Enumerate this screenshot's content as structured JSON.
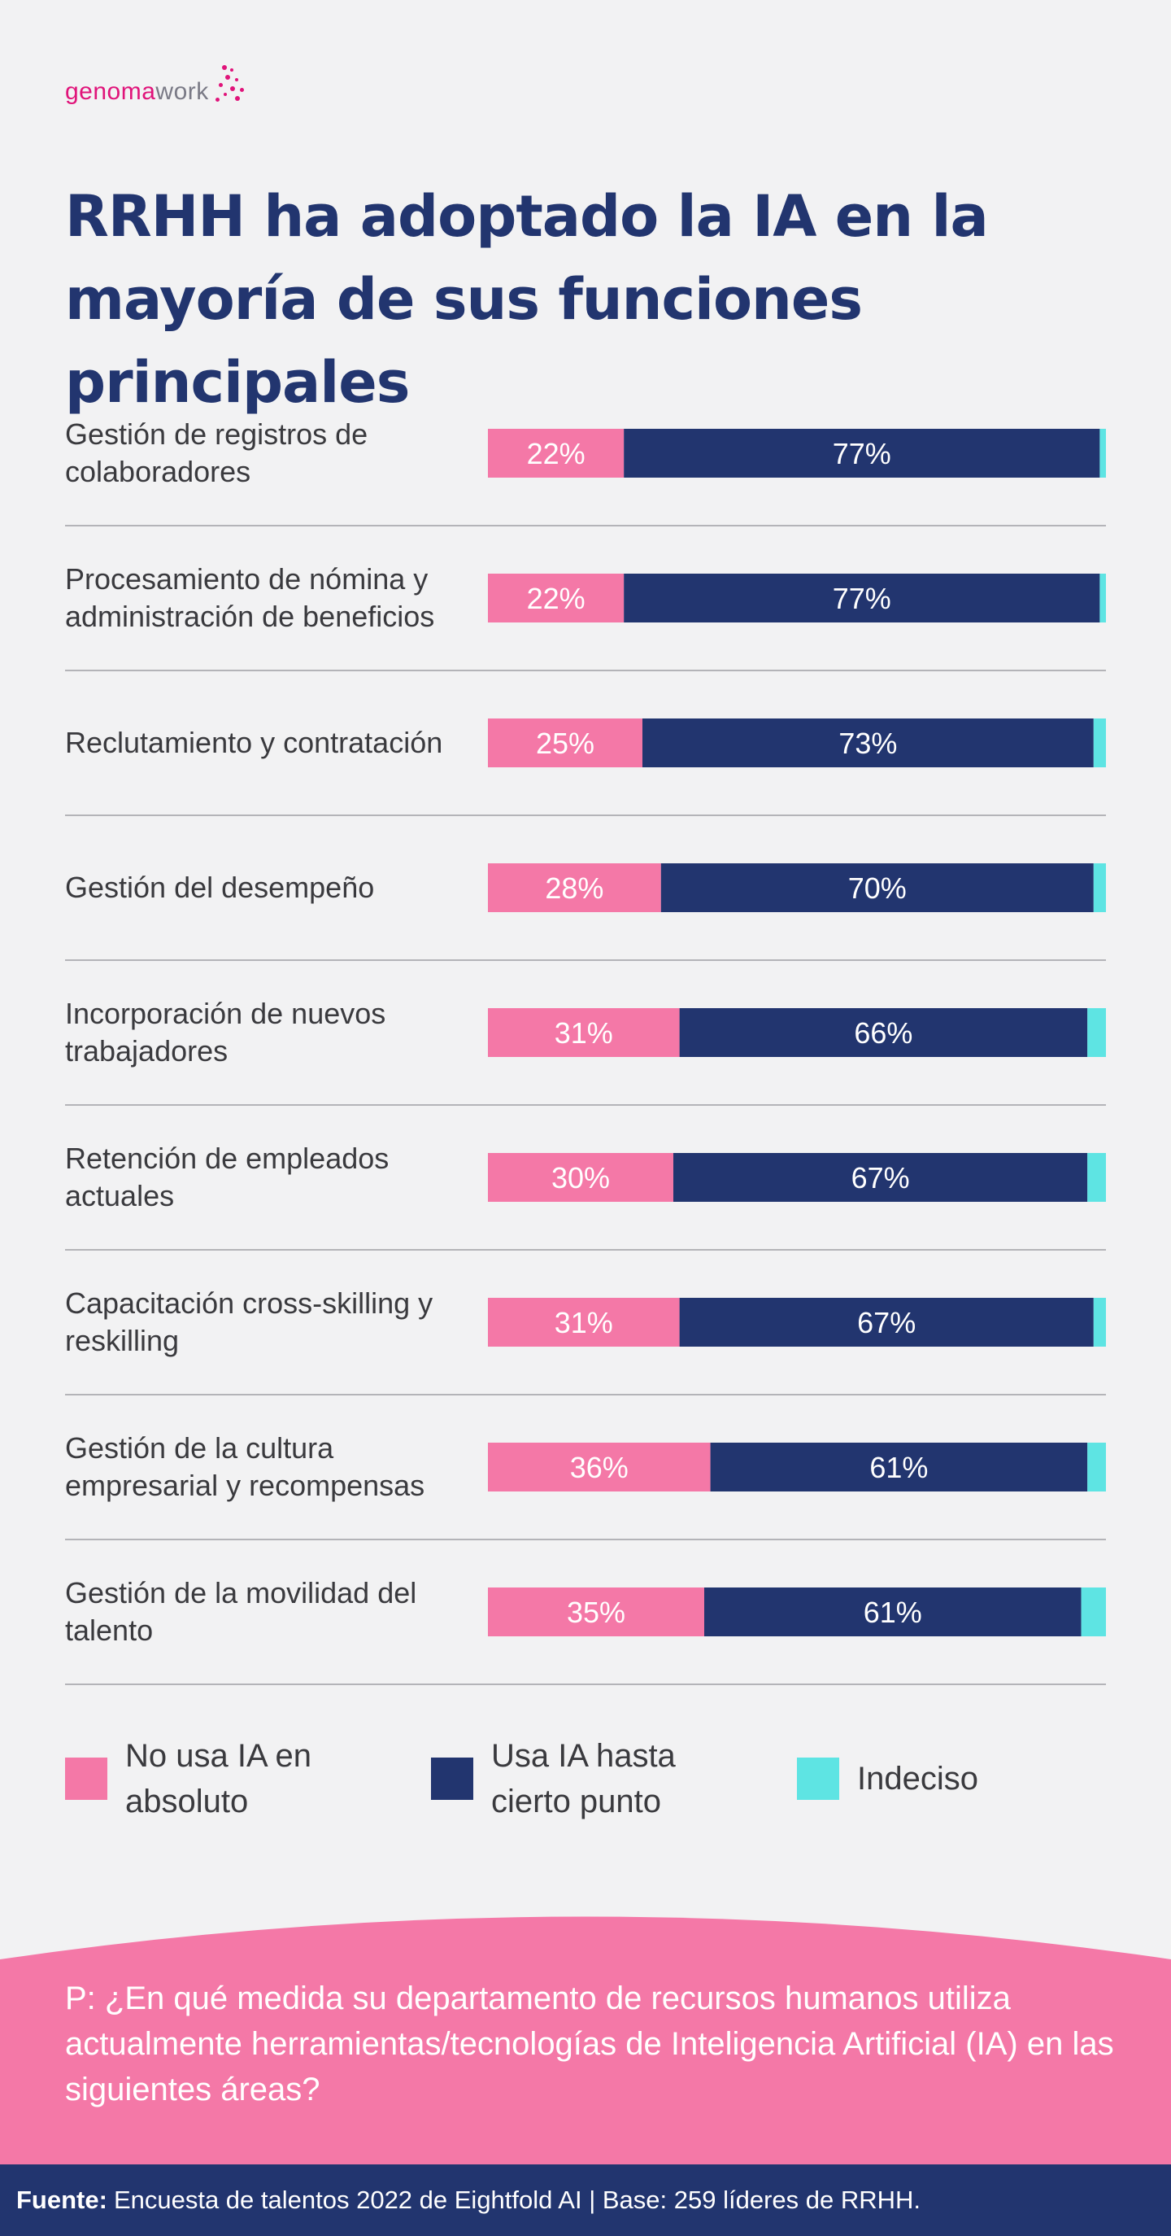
{
  "brand": {
    "logo_main": "genoma",
    "logo_accent": "work"
  },
  "title": "RRHH ha adoptado la IA en la mayoría de sus funciones principales",
  "colors": {
    "pink": "#f478a7",
    "navy": "#22356f",
    "cyan": "#5ee4e3",
    "text": "#3a3a3e"
  },
  "chart_data": {
    "type": "bar",
    "orientation": "horizontal",
    "stacked": true,
    "normalized": true,
    "title": "RRHH ha adoptado la IA en la mayoría de sus funciones principales",
    "categories": [
      "Gestión de registros de colaboradores",
      "Procesamiento de nómina y administración de beneficios",
      "Reclutamiento y contratación",
      "Gestión del desempeño",
      "Incorporación de nuevos trabajadores",
      "Retención de empleados actuales",
      "Capacitación cross-skilling y reskilling",
      "Gestión de la cultura empresarial y recompensas",
      "Gestión de la movilidad del talento"
    ],
    "series": [
      {
        "name": "No usa IA en absoluto",
        "color": "#f478a7",
        "values": [
          22,
          22,
          25,
          28,
          31,
          30,
          31,
          36,
          35
        ],
        "labels": [
          "22%",
          "22%",
          "25%",
          "28%",
          "31%",
          "30%",
          "31%",
          "36%",
          "35%"
        ]
      },
      {
        "name": "Usa IA hasta cierto punto",
        "color": "#22356f",
        "values": [
          77,
          77,
          73,
          70,
          66,
          67,
          67,
          61,
          61
        ],
        "labels": [
          "77%",
          "77%",
          "73%",
          "70%",
          "66%",
          "67%",
          "67%",
          "61%",
          "61%"
        ]
      },
      {
        "name": "Indeciso",
        "color": "#5ee4e3",
        "values": [
          1,
          1,
          2,
          2,
          3,
          3,
          2,
          3,
          4
        ]
      }
    ],
    "xlim": [
      0,
      100
    ],
    "legend": "bottom"
  },
  "legend": [
    {
      "label": "No usa IA en\nabsoluto",
      "color": "#f478a7"
    },
    {
      "label": "Usa IA hasta\ncierto punto",
      "color": "#22356f"
    },
    {
      "label": "Indeciso",
      "color": "#5ee4e3"
    }
  ],
  "question": "P: ¿En qué medida su departamento de recursos humanos utiliza actualmente herramientas/tecnologías de Inteligencia Artificial (IA) en las siguientes áreas?",
  "source": {
    "label": "Fuente:",
    "text": "Encuesta de talentos 2022 de Eightfold AI | Base: 259 líderes de RRHH."
  }
}
